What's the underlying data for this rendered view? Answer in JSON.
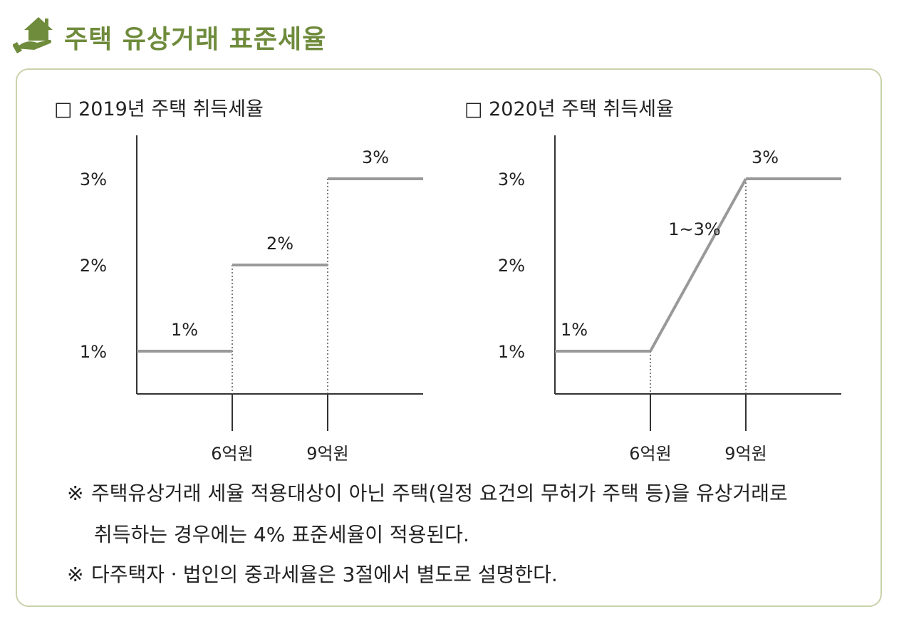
{
  "header": {
    "title": "주택 유상거래 표준세율",
    "icon": "house-in-hand-icon",
    "accent": "#6f8b3c"
  },
  "chart_data": [
    {
      "type": "line",
      "title": "□ 2019년 주택 취득세율",
      "y_ticks": [
        "1%",
        "2%",
        "3%"
      ],
      "x_ticks": [
        "6억원",
        "9억원"
      ],
      "shape": "step",
      "segments": [
        {
          "label": "1%",
          "value": 1
        },
        {
          "label": "2%",
          "value": 2
        },
        {
          "label": "3%",
          "value": 3
        }
      ]
    },
    {
      "type": "line",
      "title": "□ 2020년 주택 취득세율",
      "y_ticks": [
        "1%",
        "2%",
        "3%"
      ],
      "x_ticks": [
        "6억원",
        "9억원"
      ],
      "shape": "linear-ramp",
      "segments": [
        {
          "label": "1%",
          "value": 1
        },
        {
          "label": "1~3%",
          "value_range": [
            1,
            3
          ]
        },
        {
          "label": "3%",
          "value": 3
        }
      ]
    }
  ],
  "notes": [
    {
      "mark": "※",
      "line1": "주택유상거래 세율 적용대상이 아닌 주택(일정 요건의 무허가 주택 등)을 유상거래로",
      "line2": "취득하는 경우에는 4% 표준세율이 적용된다."
    },
    {
      "mark": "※",
      "line1": "다주택자ㆍ법인의 중과세율은 3절에서 별도로 설명한다."
    }
  ],
  "colors": {
    "line": "#999999",
    "axis": "#333333",
    "border": "#c9d2ab"
  }
}
